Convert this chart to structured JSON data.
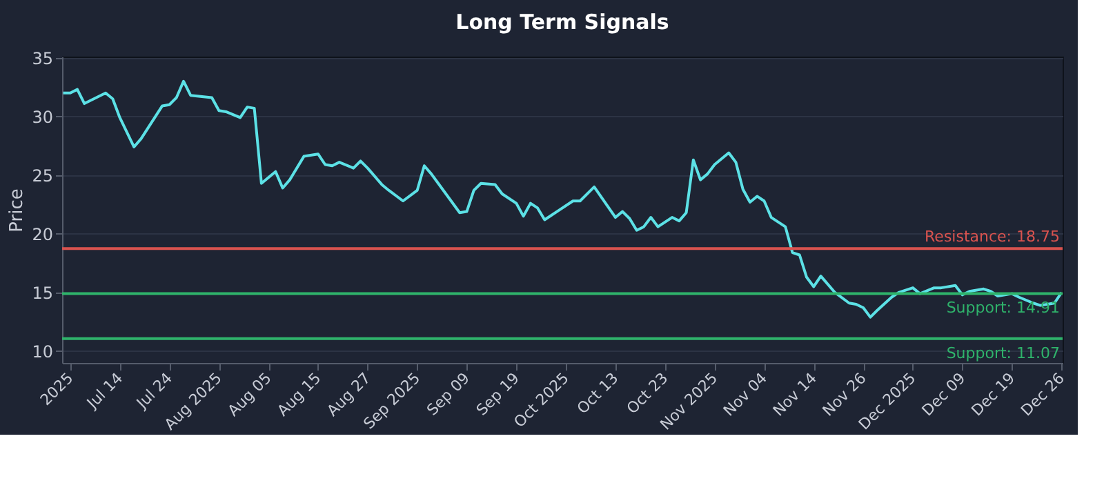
{
  "chart_data": {
    "type": "line",
    "title": "Long Term Signals",
    "ylabel": "Price",
    "categories": [
      null,
      "2025",
      null,
      null,
      null,
      null,
      null,
      null,
      "Jul 14",
      null,
      null,
      null,
      null,
      null,
      null,
      "Jul 24",
      null,
      null,
      null,
      null,
      null,
      null,
      "Aug 2025",
      null,
      null,
      null,
      null,
      null,
      null,
      "Aug 05",
      null,
      null,
      null,
      null,
      null,
      null,
      "Aug 15",
      null,
      null,
      null,
      null,
      null,
      null,
      "Aug 27",
      null,
      null,
      null,
      null,
      null,
      null,
      "Sep 2025",
      null,
      null,
      null,
      null,
      null,
      null,
      "Sep 09",
      null,
      null,
      null,
      null,
      null,
      null,
      "Sep 19",
      null,
      null,
      null,
      null,
      null,
      null,
      "Oct 2025",
      null,
      null,
      null,
      null,
      null,
      null,
      "Oct 13",
      null,
      null,
      null,
      null,
      null,
      null,
      "Oct 23",
      null,
      null,
      null,
      null,
      null,
      null,
      "Nov 2025",
      null,
      null,
      null,
      null,
      null,
      null,
      "Nov 04",
      null,
      null,
      null,
      null,
      null,
      null,
      "Nov 14",
      null,
      null,
      null,
      null,
      null,
      null,
      "Nov 26",
      null,
      null,
      null,
      null,
      null,
      null,
      "Dec 2025",
      null,
      null,
      null,
      null,
      null,
      null,
      "Dec 09",
      null,
      null,
      null,
      null,
      null,
      null,
      "Dec 19",
      null,
      null,
      null,
      null,
      null,
      null,
      "Dec 26"
    ],
    "series": [
      {
        "color": "#5ce1e6",
        "values": [
          32.0,
          32.0,
          32.3,
          31.1,
          null,
          null,
          32.0,
          31.5,
          29.9,
          null,
          27.4,
          28.1,
          null,
          null,
          30.9,
          31.0,
          31.6,
          33.0,
          31.8,
          null,
          null,
          31.6,
          30.5,
          30.4,
          null,
          29.9,
          30.8,
          30.7,
          24.3,
          null,
          25.3,
          23.9,
          24.6,
          null,
          26.6,
          null,
          26.8,
          25.9,
          25.8,
          26.1,
          null,
          25.6,
          26.2,
          25.6,
          null,
          24.2,
          23.7,
          null,
          22.8,
          null,
          23.7,
          25.8,
          25.1,
          null,
          null,
          null,
          21.8,
          21.9,
          23.7,
          24.3,
          null,
          24.2,
          23.4,
          null,
          22.6,
          21.5,
          22.6,
          22.2,
          21.2,
          null,
          22.0,
          null,
          22.8,
          22.8,
          null,
          24.0,
          null,
          null,
          21.4,
          21.9,
          21.3,
          20.3,
          20.6,
          21.4,
          20.6,
          null,
          21.4,
          21.1,
          21.8,
          26.3,
          24.6,
          25.1,
          25.9,
          null,
          26.9,
          26.1,
          23.8,
          22.7,
          23.2,
          22.8,
          21.4,
          null,
          20.6,
          18.4,
          18.2,
          16.3,
          15.5,
          16.4,
          null,
          15.0,
          null,
          14.1,
          14.0,
          13.7,
          12.9,
          13.5,
          null,
          14.6,
          15.0,
          null,
          15.4,
          14.9,
          null,
          15.4,
          15.4,
          null,
          15.6,
          14.8,
          15.1,
          null,
          15.3,
          15.1,
          14.7,
          null,
          14.9,
          14.6,
          null,
          14.1,
          13.9,
          null,
          14.1,
          15.0
        ]
      }
    ],
    "ylim": [
      9,
      35.1
    ],
    "yticks": [
      10,
      15,
      20,
      25,
      30,
      35
    ],
    "grid": "y",
    "ref_lines": [
      {
        "axis": "y",
        "value": 18.75,
        "label": "Resistance: 18.75",
        "color": "#d9534f"
      },
      {
        "axis": "y",
        "value": 14.91,
        "label": "Support: 14.91",
        "color": "#2fb36b"
      },
      {
        "axis": "y",
        "value": 11.07,
        "label": "Support: 11.07",
        "color": "#2fb36b"
      }
    ]
  }
}
